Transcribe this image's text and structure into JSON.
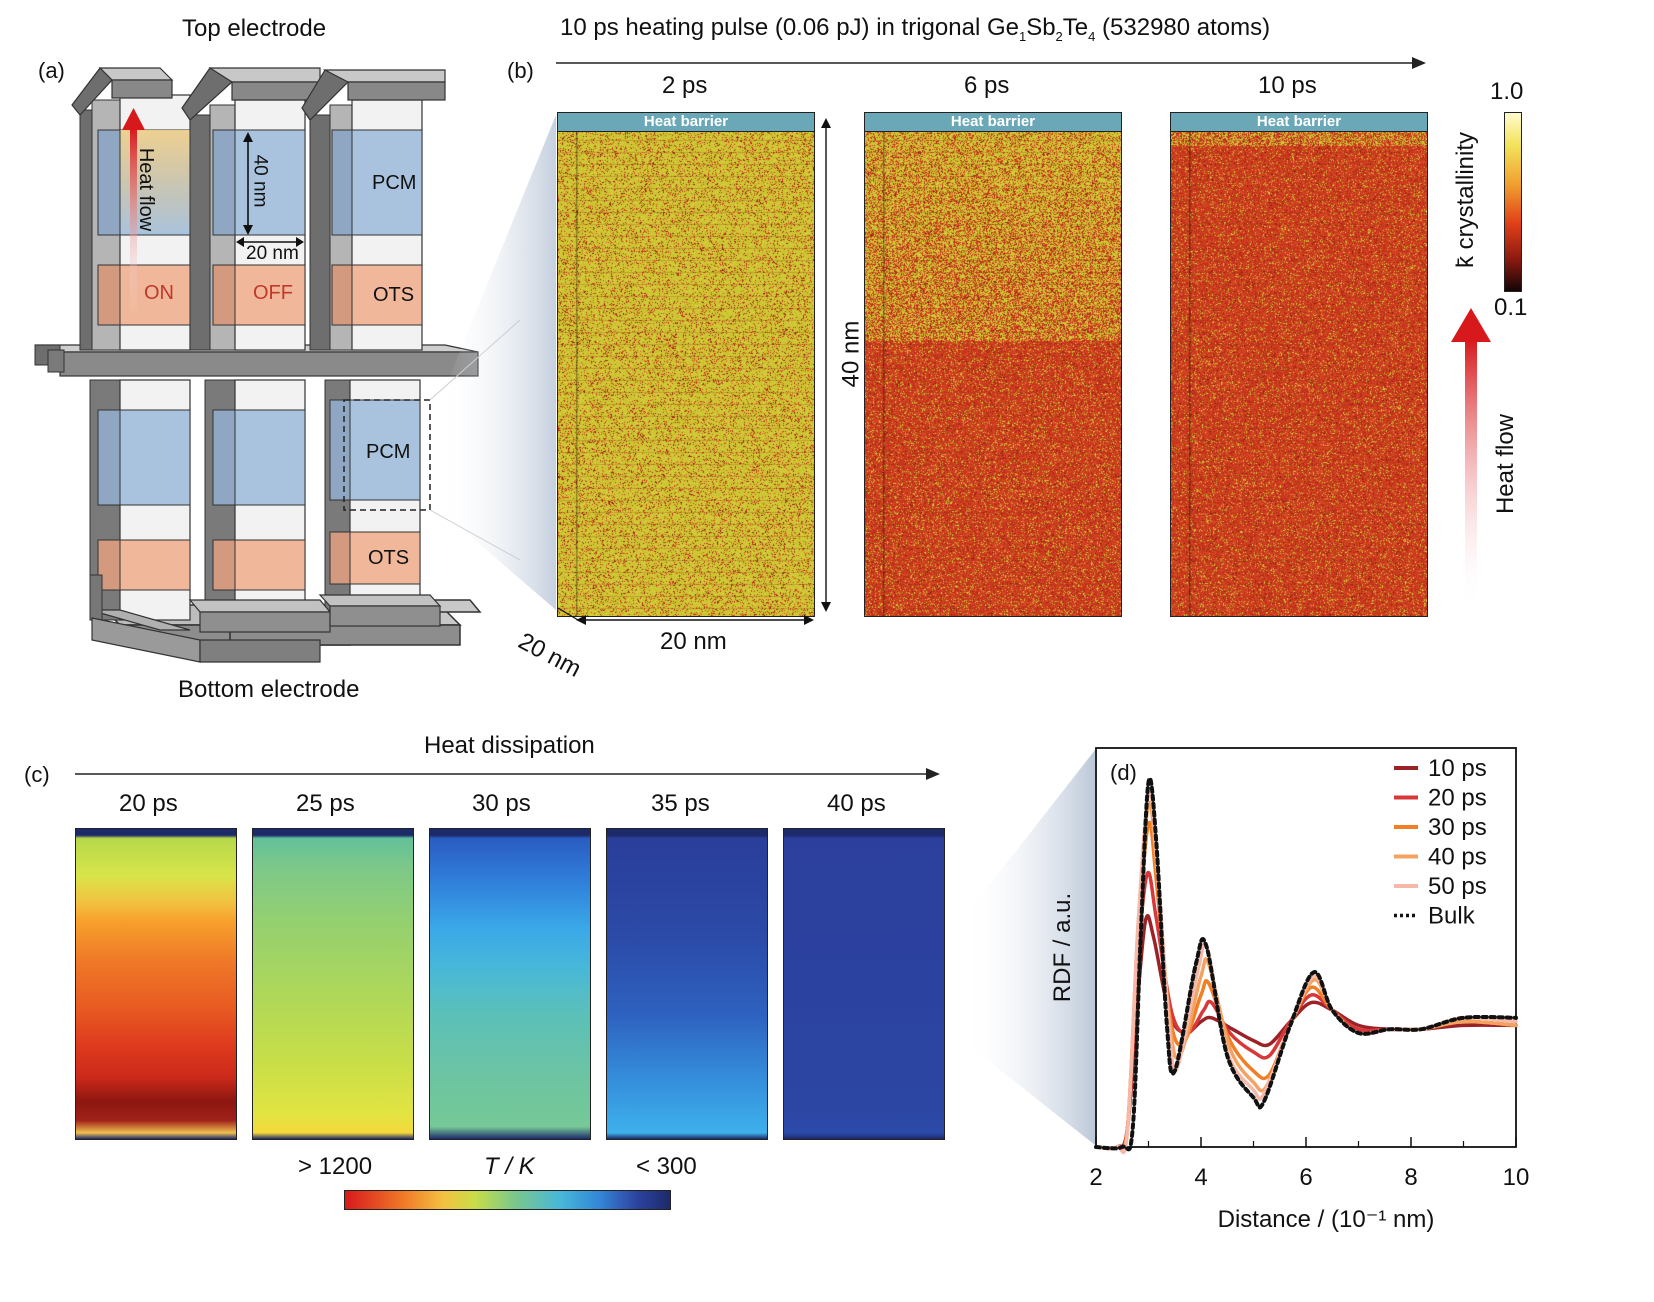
{
  "panel_a": {
    "label": "(a)",
    "top_electrode": "Top electrode",
    "bottom_electrode": "Bottom electrode",
    "heat_flow": "Heat flow",
    "dim_height": "40 nm",
    "dim_width": "20 nm",
    "pcm": "PCM",
    "ots": "OTS",
    "on": "ON",
    "off": "OFF"
  },
  "panel_b": {
    "label": "(b)",
    "title_pre": "10 ps heating pulse (0.06 pJ) in trigonal Ge",
    "sub1": "1",
    "mid1": "Sb",
    "sub2": "2",
    "mid2": "Te",
    "sub3": "4",
    "title_post": " (532980 atoms)",
    "times": [
      "2 ps",
      "6 ps",
      "10 ps"
    ],
    "heat_barrier": "Heat barrier",
    "dim_height": "40 nm",
    "dim_width": "20 nm",
    "dim_depth": "20 nm",
    "colorbar_label": "k̄ crystallinity",
    "colorbar_max": "1.0",
    "colorbar_min": "0.1",
    "heat_flow": "Heat flow"
  },
  "panel_c": {
    "label": "(c)",
    "title": "Heat dissipation",
    "times": [
      "20 ps",
      "25 ps",
      "30 ps",
      "35 ps",
      "40 ps"
    ],
    "cb_high": "> 1200",
    "cb_label": "T / K",
    "cb_low": "< 300"
  },
  "panel_d": {
    "label": "(d)",
    "chart_data": {
      "type": "line",
      "xlabel": "Distance / (10⁻¹ nm)",
      "ylabel": "RDF / a.u.",
      "xlim": [
        2,
        10
      ],
      "x_ticks": [
        "2",
        "4",
        "6",
        "8",
        "10"
      ],
      "legend_position": "top-right",
      "series": [
        {
          "name": "10 ps",
          "color": "#9b2226",
          "dash": false,
          "points": [
            [
              2.0,
              0
            ],
            [
              2.4,
              0
            ],
            [
              2.6,
              0.05
            ],
            [
              2.8,
              0.4
            ],
            [
              2.95,
              0.6
            ],
            [
              3.1,
              0.55
            ],
            [
              3.4,
              0.35
            ],
            [
              3.7,
              0.3
            ],
            [
              4.0,
              0.33
            ],
            [
              4.2,
              0.34
            ],
            [
              4.6,
              0.31
            ],
            [
              5.0,
              0.28
            ],
            [
              5.3,
              0.27
            ],
            [
              5.7,
              0.33
            ],
            [
              6.1,
              0.38
            ],
            [
              6.5,
              0.36
            ],
            [
              7.0,
              0.32
            ],
            [
              7.6,
              0.31
            ],
            [
              8.2,
              0.31
            ],
            [
              9.0,
              0.32
            ],
            [
              10.0,
              0.32
            ]
          ]
        },
        {
          "name": "20 ps",
          "color": "#d9383a",
          "dash": false,
          "points": [
            [
              2.0,
              0
            ],
            [
              2.4,
              0
            ],
            [
              2.6,
              0.05
            ],
            [
              2.8,
              0.5
            ],
            [
              2.98,
              0.72
            ],
            [
              3.15,
              0.6
            ],
            [
              3.45,
              0.35
            ],
            [
              3.75,
              0.3
            ],
            [
              4.05,
              0.36
            ],
            [
              4.2,
              0.38
            ],
            [
              4.55,
              0.3
            ],
            [
              5.0,
              0.25
            ],
            [
              5.3,
              0.24
            ],
            [
              5.7,
              0.33
            ],
            [
              6.1,
              0.4
            ],
            [
              6.5,
              0.36
            ],
            [
              7.0,
              0.31
            ],
            [
              7.6,
              0.31
            ],
            [
              8.2,
              0.31
            ],
            [
              9.0,
              0.33
            ],
            [
              10.0,
              0.32
            ]
          ]
        },
        {
          "name": "30 ps",
          "color": "#f07f26",
          "dash": false,
          "points": [
            [
              2.0,
              0
            ],
            [
              2.4,
              0
            ],
            [
              2.6,
              0.05
            ],
            [
              2.8,
              0.55
            ],
            [
              3.0,
              0.85
            ],
            [
              3.15,
              0.7
            ],
            [
              3.4,
              0.35
            ],
            [
              3.65,
              0.27
            ],
            [
              4.0,
              0.4
            ],
            [
              4.15,
              0.43
            ],
            [
              4.55,
              0.28
            ],
            [
              5.0,
              0.2
            ],
            [
              5.3,
              0.19
            ],
            [
              5.7,
              0.32
            ],
            [
              6.1,
              0.42
            ],
            [
              6.5,
              0.36
            ],
            [
              7.0,
              0.3
            ],
            [
              7.6,
              0.31
            ],
            [
              8.2,
              0.31
            ],
            [
              9.0,
              0.33
            ],
            [
              10.0,
              0.32
            ]
          ]
        },
        {
          "name": "40 ps",
          "color": "#f4a261",
          "dash": false,
          "points": [
            [
              2.0,
              0
            ],
            [
              2.4,
              0
            ],
            [
              2.6,
              0.05
            ],
            [
              2.8,
              0.58
            ],
            [
              3.0,
              0.9
            ],
            [
              3.15,
              0.75
            ],
            [
              3.4,
              0.33
            ],
            [
              3.6,
              0.24
            ],
            [
              4.0,
              0.45
            ],
            [
              4.15,
              0.48
            ],
            [
              4.55,
              0.26
            ],
            [
              5.0,
              0.17
            ],
            [
              5.25,
              0.16
            ],
            [
              5.7,
              0.32
            ],
            [
              6.15,
              0.44
            ],
            [
              6.5,
              0.36
            ],
            [
              7.0,
              0.3
            ],
            [
              7.6,
              0.31
            ],
            [
              8.2,
              0.31
            ],
            [
              9.0,
              0.33
            ],
            [
              10.0,
              0.32
            ]
          ]
        },
        {
          "name": "50 ps",
          "color": "#f6b8a8",
          "dash": false,
          "points": [
            [
              2.0,
              0
            ],
            [
              2.4,
              0
            ],
            [
              2.6,
              0.04
            ],
            [
              2.8,
              0.58
            ],
            [
              3.0,
              0.93
            ],
            [
              3.15,
              0.78
            ],
            [
              3.4,
              0.3
            ],
            [
              3.55,
              0.21
            ],
            [
              3.95,
              0.47
            ],
            [
              4.12,
              0.52
            ],
            [
              4.5,
              0.25
            ],
            [
              5.0,
              0.15
            ],
            [
              5.2,
              0.14
            ],
            [
              5.7,
              0.32
            ],
            [
              6.15,
              0.45
            ],
            [
              6.5,
              0.36
            ],
            [
              7.0,
              0.3
            ],
            [
              7.6,
              0.31
            ],
            [
              8.2,
              0.31
            ],
            [
              9.0,
              0.34
            ],
            [
              10.0,
              0.33
            ]
          ]
        },
        {
          "name": "Bulk",
          "color": "#111111",
          "dash": true,
          "points": [
            [
              2.0,
              0
            ],
            [
              2.5,
              0
            ],
            [
              2.7,
              0.05
            ],
            [
              2.85,
              0.55
            ],
            [
              3.0,
              0.96
            ],
            [
              3.15,
              0.8
            ],
            [
              3.35,
              0.32
            ],
            [
              3.5,
              0.2
            ],
            [
              3.9,
              0.48
            ],
            [
              4.1,
              0.53
            ],
            [
              4.5,
              0.24
            ],
            [
              5.0,
              0.13
            ],
            [
              5.2,
              0.12
            ],
            [
              5.7,
              0.32
            ],
            [
              6.15,
              0.46
            ],
            [
              6.5,
              0.36
            ],
            [
              7.0,
              0.3
            ],
            [
              7.6,
              0.31
            ],
            [
              8.2,
              0.31
            ],
            [
              9.0,
              0.34
            ],
            [
              10.0,
              0.34
            ]
          ]
        }
      ]
    }
  },
  "colors": {
    "pcm": "#a9c3de",
    "ots": "#f0b79a",
    "heat_red": "#d7191c",
    "barrier": "#6aa8b8",
    "crystal_high": "#d6cf3c",
    "crystal_low": "#c8301e"
  }
}
